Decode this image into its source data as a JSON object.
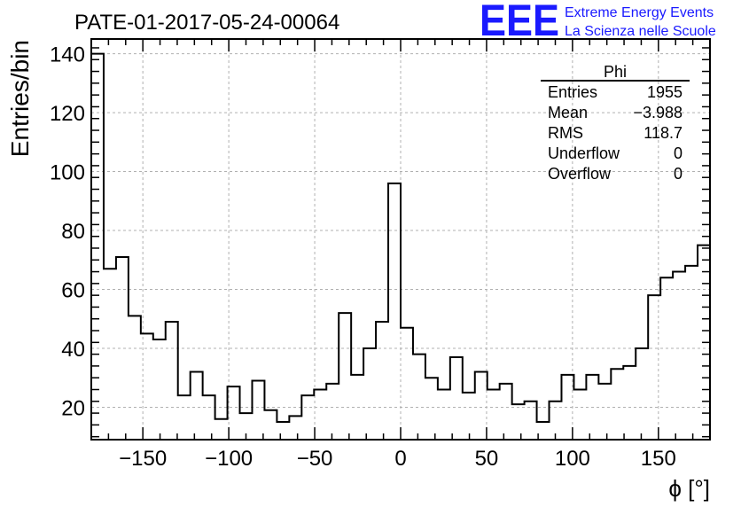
{
  "chart_data": {
    "type": "histogram",
    "title": "PATE-01-2017-05-24-00064",
    "xlabel": "ϕ [°]",
    "ylabel": "Entries/bin",
    "xlim": [
      -180,
      180
    ],
    "ylim": [
      9,
      145
    ],
    "bin_width": 7.2,
    "x_ticks": [
      -150,
      -100,
      -50,
      0,
      50,
      100,
      150
    ],
    "x_tick_labels": [
      "−150",
      "−100",
      "−50",
      "0",
      "50",
      "100",
      "150"
    ],
    "y_ticks": [
      20,
      40,
      60,
      80,
      100,
      120,
      140
    ],
    "y_tick_labels": [
      "20",
      "40",
      "60",
      "80",
      "100",
      "120",
      "140"
    ],
    "grid": true,
    "values": [
      140,
      67,
      71,
      51,
      45,
      43,
      49,
      24,
      32,
      24,
      16,
      27,
      18,
      29,
      19,
      15,
      17,
      24,
      26,
      28,
      52,
      31,
      40,
      49,
      96,
      47,
      38,
      30,
      26,
      37,
      25,
      32,
      26,
      28,
      21,
      22,
      15,
      22,
      31,
      26,
      31,
      28,
      33,
      34,
      40,
      58,
      64,
      66,
      68,
      75
    ],
    "stats_box": {
      "title": "Phi",
      "rows": [
        {
          "label": "Entries",
          "value": "1955"
        },
        {
          "label": "Mean",
          "value": "−3.988"
        },
        {
          "label": "RMS",
          "value": "118.7"
        },
        {
          "label": "Underflow",
          "value": "0"
        },
        {
          "label": "Overflow",
          "value": "0"
        }
      ]
    }
  },
  "logo": {
    "text": "EEE",
    "line1": "Extreme Energy Events",
    "line2": "La Scienza nelle Scuole",
    "color": "#1a1aff"
  }
}
